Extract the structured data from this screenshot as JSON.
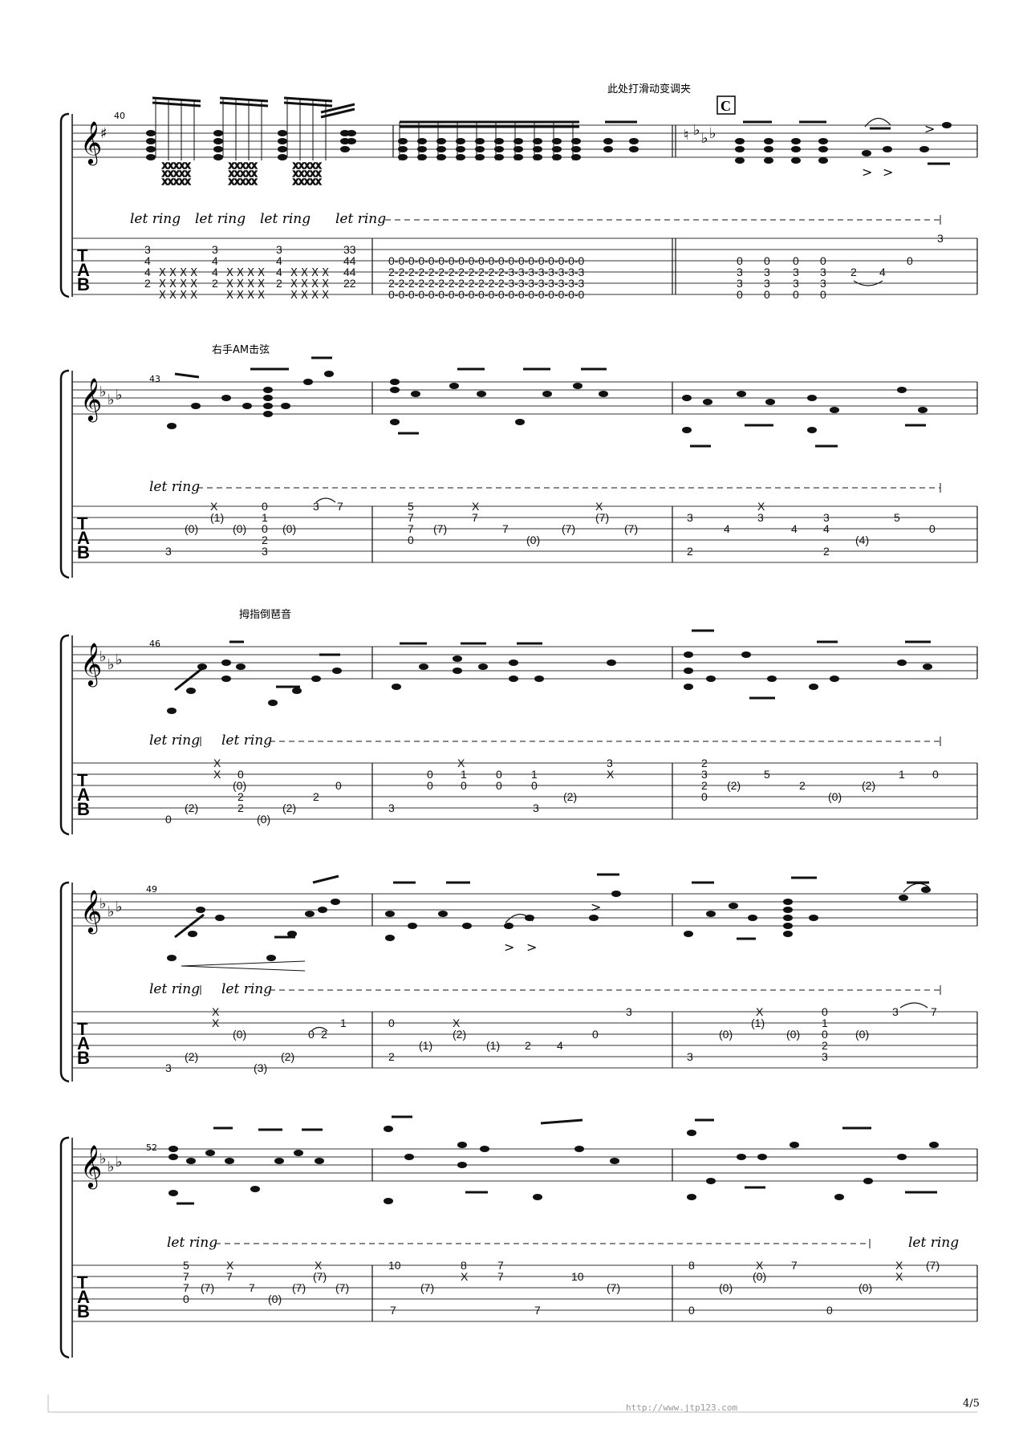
{
  "annotations": {
    "capo_change": "此处打滑动变调夹",
    "right_hand_mute": "右手AM击弦",
    "thumb_reverse": "拇指倒琶音",
    "section_marker": "C",
    "let_ring": "let ring"
  },
  "tab_labels": [
    "T",
    "A",
    "B"
  ],
  "systems": [
    {
      "first_measure": "40"
    },
    {
      "first_measure": "43"
    },
    {
      "first_measure": "46"
    },
    {
      "first_measure": "49"
    },
    {
      "first_measure": "52"
    }
  ],
  "footer": {
    "url": "http://www.jtp123.com",
    "page": "4/5"
  }
}
